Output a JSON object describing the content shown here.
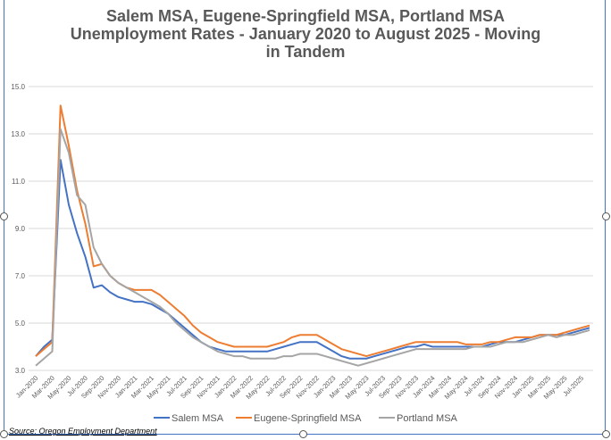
{
  "chart_data": {
    "type": "line",
    "title": [
      "Salem MSA, Eugene-Springfield MSA, Portland MSA",
      "Unemployment Rates - January 2020 to August 2025 -  Moving",
      "in Tandem"
    ],
    "ylim": [
      3.0,
      15.0
    ],
    "yticks": [
      "3.0",
      "5.0",
      "7.0",
      "9.0",
      "11.0",
      "13.0",
      "15.0"
    ],
    "grid": true,
    "legend": "bottom",
    "x_tick_labels": [
      "Jan-2020",
      "Mar-2020",
      "May-2020",
      "Jul-2020",
      "Sep-2020",
      "Nov-2020",
      "Jan-2021",
      "Mar-2021",
      "May-2021",
      "Jul-2021",
      "Sep-2021",
      "Nov-2021",
      "Jan-2022",
      "Mar-2022",
      "May-2022",
      "Jul-2022",
      "Sep-2022",
      "Nov-2022",
      "Jan-2023",
      "Mar-2023",
      "May-2023",
      "Jul-2023",
      "Sep-2023",
      "Nov-2023",
      "Jan-2024",
      "Mar-2024",
      "May-2024",
      "Jul-2024",
      "Sep-2024",
      "Nov-2024",
      "Jan-2025",
      "Mar-2025",
      "May-2025",
      "Jul-2025"
    ],
    "x_start": "Jan-2020",
    "x_end": "Aug-2025",
    "series": [
      {
        "name": "Salem MSA",
        "color": "#4472c4",
        "values": [
          3.6,
          4.0,
          4.3,
          11.9,
          10.0,
          8.8,
          7.8,
          6.5,
          6.6,
          6.3,
          6.1,
          6.0,
          5.9,
          5.9,
          5.8,
          5.6,
          5.4,
          5.1,
          4.8,
          4.5,
          4.2,
          4.0,
          3.9,
          3.8,
          3.8,
          3.8,
          3.8,
          3.8,
          3.8,
          3.9,
          4.0,
          4.1,
          4.2,
          4.2,
          4.2,
          4.0,
          3.8,
          3.6,
          3.5,
          3.5,
          3.5,
          3.6,
          3.7,
          3.8,
          3.9,
          4.0,
          4.0,
          4.1,
          4.0,
          4.0,
          4.0,
          4.0,
          4.0,
          4.0,
          4.0,
          4.1,
          4.2,
          4.2,
          4.2,
          4.3,
          4.4,
          4.5,
          4.5,
          4.5,
          4.5,
          4.6,
          4.7,
          4.8
        ]
      },
      {
        "name": "Eugene-Springfield MSA",
        "color": "#ed7d31",
        "values": [
          3.6,
          3.9,
          4.2,
          14.2,
          12.5,
          10.6,
          9.2,
          7.4,
          7.5,
          7.0,
          6.7,
          6.5,
          6.4,
          6.4,
          6.4,
          6.2,
          5.9,
          5.6,
          5.3,
          4.9,
          4.6,
          4.4,
          4.2,
          4.1,
          4.0,
          4.0,
          4.0,
          4.0,
          4.0,
          4.1,
          4.2,
          4.4,
          4.5,
          4.5,
          4.5,
          4.3,
          4.1,
          3.9,
          3.8,
          3.7,
          3.6,
          3.7,
          3.8,
          3.9,
          4.0,
          4.1,
          4.2,
          4.2,
          4.2,
          4.2,
          4.2,
          4.2,
          4.1,
          4.1,
          4.1,
          4.2,
          4.2,
          4.3,
          4.4,
          4.4,
          4.4,
          4.5,
          4.5,
          4.5,
          4.6,
          4.7,
          4.8,
          4.9
        ]
      },
      {
        "name": "Portland MSA",
        "color": "#a5a5a5",
        "values": [
          3.2,
          3.5,
          3.8,
          13.2,
          12.2,
          10.4,
          10.0,
          8.2,
          7.5,
          7.0,
          6.7,
          6.5,
          6.3,
          6.1,
          5.9,
          5.7,
          5.4,
          5.0,
          4.7,
          4.4,
          4.2,
          4.0,
          3.8,
          3.7,
          3.6,
          3.6,
          3.5,
          3.5,
          3.5,
          3.5,
          3.6,
          3.6,
          3.7,
          3.7,
          3.7,
          3.6,
          3.5,
          3.4,
          3.3,
          3.2,
          3.3,
          3.4,
          3.5,
          3.6,
          3.7,
          3.8,
          3.9,
          3.9,
          3.9,
          3.9,
          3.9,
          3.9,
          3.9,
          4.0,
          4.0,
          4.0,
          4.1,
          4.2,
          4.2,
          4.2,
          4.3,
          4.4,
          4.5,
          4.4,
          4.5,
          4.5,
          4.6,
          4.7
        ]
      }
    ]
  },
  "source": "Source: Oregon Employment Department"
}
